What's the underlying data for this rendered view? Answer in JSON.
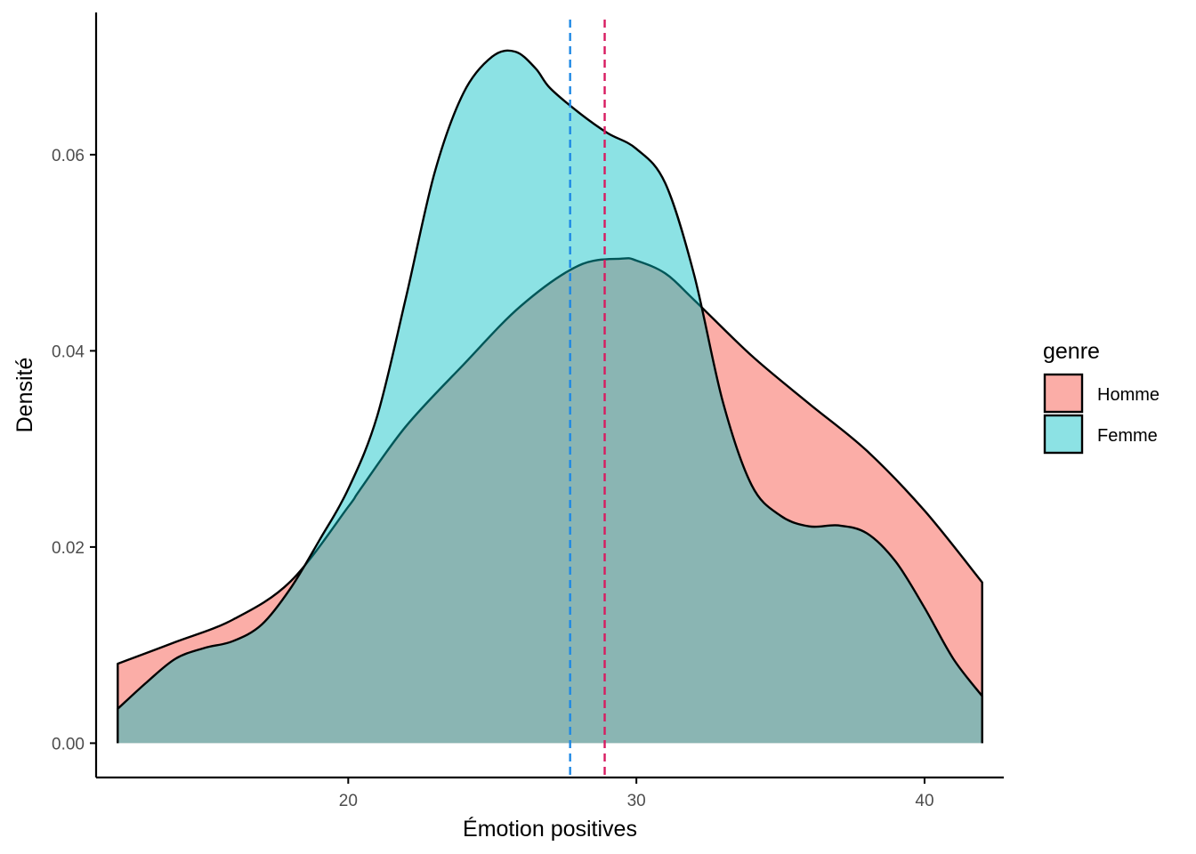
{
  "chart_data": {
    "type": "area",
    "xlabel": "Émotion positives",
    "ylabel": "Densité",
    "xlim": [
      11.25,
      42.75
    ],
    "ylim": [
      -0.0035,
      0.0745
    ],
    "x_ticks": [
      20,
      30,
      40
    ],
    "x_tick_labels": [
      "20",
      "30",
      "40"
    ],
    "y_ticks": [
      0.0,
      0.02,
      0.04,
      0.06
    ],
    "y_tick_labels": [
      "0.00",
      "0.02",
      "0.04",
      "0.06"
    ],
    "grid": false,
    "legend": {
      "title": "genre",
      "position": "right",
      "entries": [
        "Homme",
        "Femme"
      ]
    },
    "series": [
      {
        "name": "Homme",
        "color": "#F8766D",
        "fill_opacity": 0.6,
        "mean": 28.9,
        "mean_line_color": "#D81B60",
        "x": [
          12,
          14,
          16,
          18,
          20,
          20.4,
          22,
          24,
          26,
          28,
          29.5,
          30,
          31,
          32,
          34,
          36,
          38,
          40,
          42
        ],
        "y": [
          0.0081,
          0.0103,
          0.0126,
          0.0165,
          0.0241,
          0.0258,
          0.0323,
          0.0386,
          0.0446,
          0.0487,
          0.0494,
          0.0492,
          0.0479,
          0.0452,
          0.0395,
          0.0346,
          0.0298,
          0.0237,
          0.0164
        ]
      },
      {
        "name": "Femme",
        "color": "#00BFC4",
        "fill_opacity": 0.45,
        "mean": 27.7,
        "mean_line_color": "#1E88E5",
        "x": [
          12,
          13,
          14,
          15,
          16,
          17,
          18,
          19,
          20,
          21,
          22,
          23,
          24,
          25,
          25.8,
          26.5,
          27,
          28,
          29,
          30,
          31,
          32,
          33,
          34,
          35,
          36,
          37,
          38,
          39,
          40,
          41,
          42
        ],
        "y": [
          0.0035,
          0.0062,
          0.0086,
          0.0097,
          0.0104,
          0.0121,
          0.0158,
          0.0207,
          0.0259,
          0.0333,
          0.0454,
          0.0582,
          0.0663,
          0.07,
          0.0705,
          0.0688,
          0.0668,
          0.0643,
          0.0622,
          0.0606,
          0.0571,
          0.0478,
          0.0348,
          0.0263,
          0.0232,
          0.0221,
          0.0222,
          0.0214,
          0.0185,
          0.0138,
          0.0086,
          0.0048
        ]
      }
    ]
  }
}
